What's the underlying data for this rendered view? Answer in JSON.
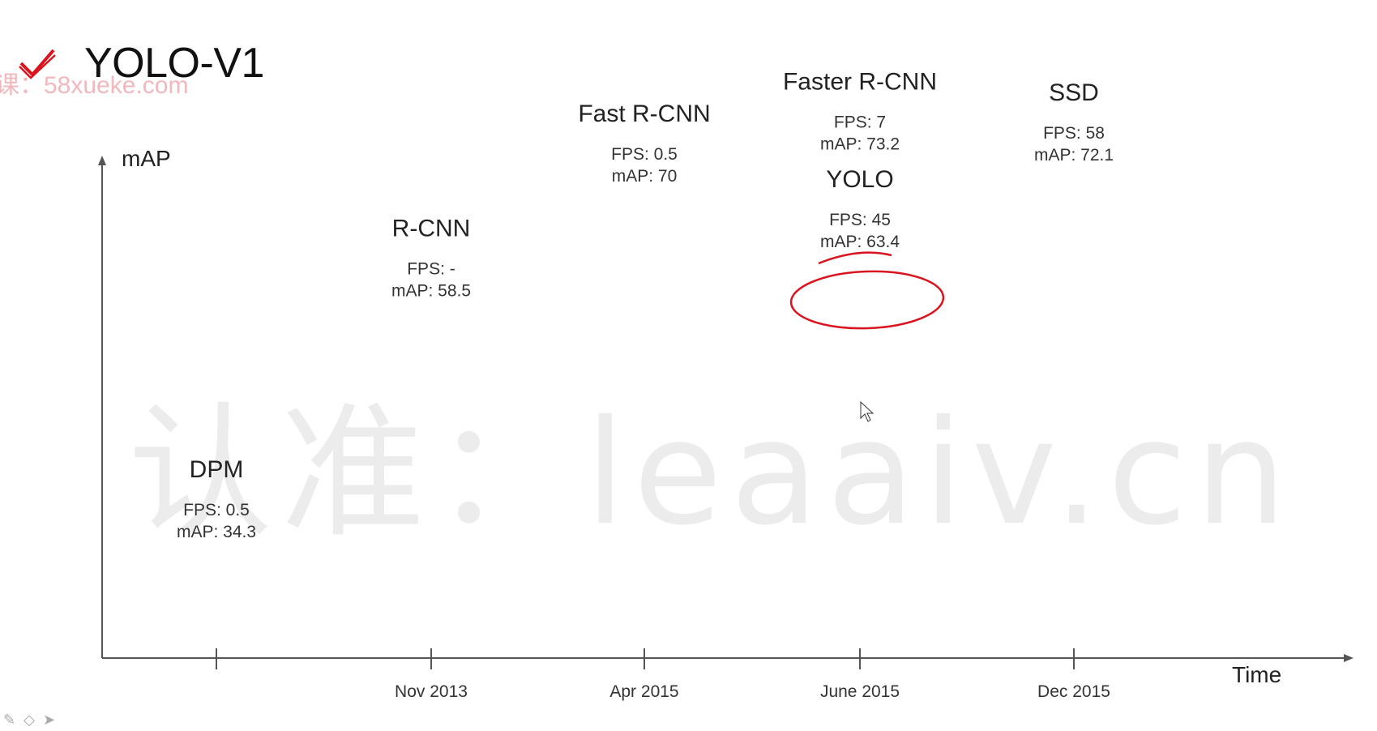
{
  "slide": {
    "title": "YOLO-V1",
    "watermark_top": "课：58xueke.com",
    "watermark_center": "认准：leaaiv.cn"
  },
  "chart_data": {
    "type": "scatter",
    "title": "",
    "ylabel": "mAP",
    "xlabel": "Time",
    "x_ticks": [
      "",
      "Nov 2013",
      "Apr 2015",
      "June 2015",
      "Dec 2015"
    ],
    "points": [
      {
        "name": "DPM",
        "x": "",
        "fps": "0.5",
        "map": 34.3,
        "fps_text": "FPS: 0.5",
        "map_text": "mAP: 34.3"
      },
      {
        "name": "R-CNN",
        "x": "Nov 2013",
        "fps": "-",
        "map": 58.5,
        "fps_text": "FPS: -",
        "map_text": "mAP: 58.5"
      },
      {
        "name": "Fast R-CNN",
        "x": "Apr 2015",
        "fps": "0.5",
        "map": 70,
        "fps_text": "FPS: 0.5",
        "map_text": "mAP: 70"
      },
      {
        "name": "Faster R-CNN",
        "x": "June 2015",
        "fps": "7",
        "map": 73.2,
        "fps_text": "FPS: 7",
        "map_text": "mAP: 73.2",
        "highlight": true
      },
      {
        "name": "YOLO",
        "x": "June 2015",
        "fps": "45",
        "map": 63.4,
        "fps_text": "FPS: 45",
        "map_text": "mAP: 63.4"
      },
      {
        "name": "SSD",
        "x": "Dec 2015",
        "fps": "58",
        "map": 72.1,
        "fps_text": "FPS: 58",
        "map_text": "mAP: 72.1"
      }
    ],
    "colors": {
      "axis": "#555555",
      "text": "#222222",
      "highlight": "#d9141f",
      "watermark": "#ececec"
    }
  }
}
